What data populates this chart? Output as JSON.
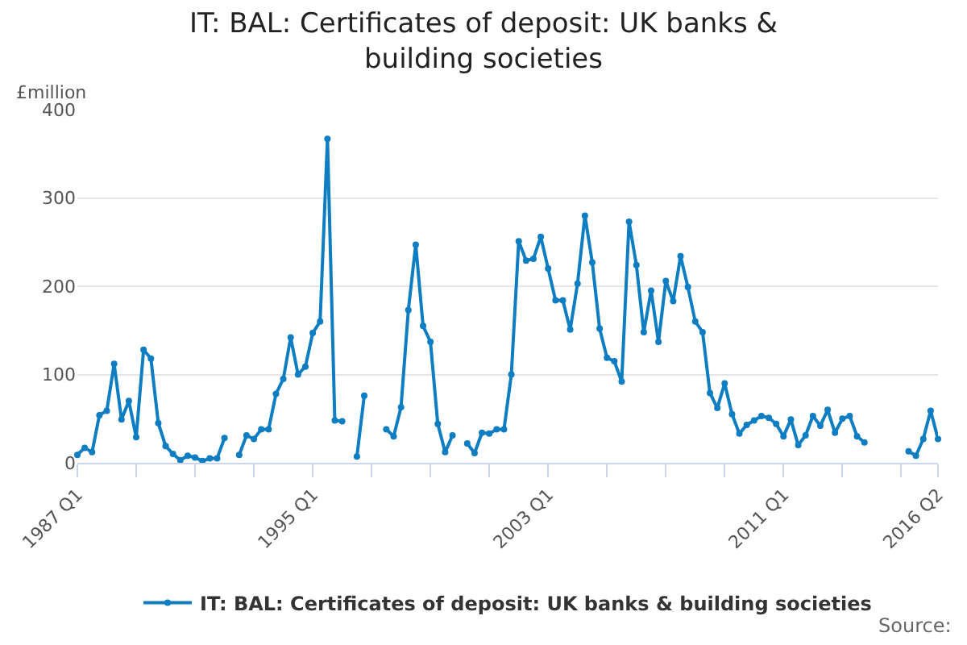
{
  "chart_data": {
    "type": "line",
    "title": "IT: BAL: Certificates of deposit: UK banks & building societies",
    "ylabel": "£million",
    "categories": [
      "1987 Q1",
      null,
      null,
      null,
      null,
      null,
      null,
      null,
      null,
      null,
      null,
      null,
      null,
      null,
      null,
      null,
      null,
      null,
      null,
      null,
      null,
      null,
      null,
      null,
      null,
      null,
      null,
      null,
      null,
      null,
      null,
      null,
      "1995 Q1",
      null,
      null,
      null,
      null,
      null,
      null,
      null,
      null,
      null,
      null,
      null,
      null,
      null,
      null,
      null,
      null,
      null,
      null,
      null,
      null,
      null,
      null,
      null,
      null,
      null,
      null,
      null,
      null,
      null,
      null,
      null,
      "2003 Q1",
      null,
      null,
      null,
      null,
      null,
      null,
      null,
      null,
      null,
      null,
      null,
      null,
      null,
      null,
      null,
      null,
      null,
      null,
      null,
      null,
      null,
      null,
      null,
      null,
      null,
      null,
      null,
      null,
      null,
      null,
      null,
      "2011 Q1",
      null,
      null,
      null,
      null,
      null,
      null,
      null,
      null,
      null,
      null,
      null,
      null,
      null,
      null,
      null,
      null,
      null,
      null,
      null,
      null,
      "2016 Q2"
    ],
    "series": [
      {
        "name": "IT: BAL: Certificates of deposit: UK banks & building societies",
        "color": "#0e7dc2",
        "values": [
          9,
          17,
          12,
          54,
          59,
          112,
          49,
          70,
          29,
          128,
          118,
          45,
          19,
          10,
          3,
          8,
          6,
          2,
          5,
          5,
          28,
          null,
          9,
          31,
          27,
          38,
          38,
          78,
          95,
          142,
          100,
          109,
          147,
          160,
          367,
          48,
          47,
          null,
          7,
          76,
          null,
          null,
          38,
          30,
          63,
          173,
          247,
          155,
          137,
          44,
          12,
          31,
          null,
          22,
          11,
          34,
          33,
          38,
          38,
          100,
          251,
          229,
          231,
          256,
          220,
          184,
          184,
          151,
          203,
          280,
          227,
          152,
          119,
          115,
          92,
          273,
          224,
          148,
          195,
          137,
          206,
          183,
          234,
          199,
          160,
          148,
          79,
          62,
          90,
          55,
          33,
          43,
          48,
          53,
          51,
          44,
          30,
          49,
          20,
          31,
          53,
          42,
          60,
          34,
          50,
          53,
          30,
          23,
          null,
          null,
          null,
          null,
          null,
          13,
          8,
          27,
          59,
          27
        ]
      }
    ],
    "ylim": [
      0,
      400
    ],
    "yticks": [
      0,
      100,
      200,
      300,
      400
    ],
    "grid": "y",
    "legend": "bottom",
    "marker": "circle",
    "line_style": "solid",
    "annotations": [
      "Source:"
    ]
  }
}
